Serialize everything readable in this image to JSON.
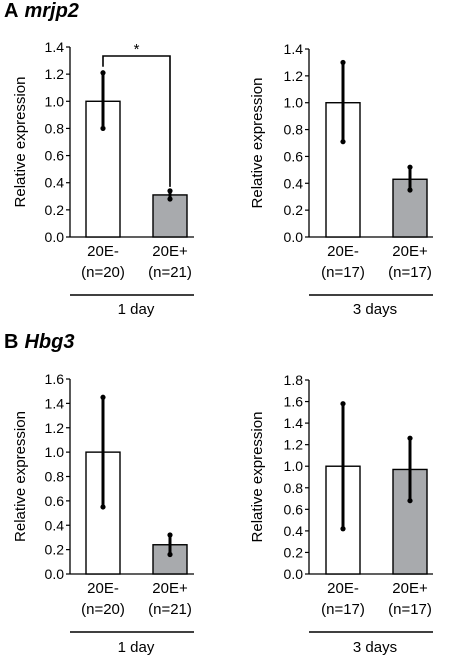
{
  "panels": [
    {
      "letter": "A",
      "gene": "mrjp2"
    },
    {
      "letter": "B",
      "gene": "Hbg3"
    }
  ],
  "colors": {
    "control_bar": "#ffffff",
    "treated_bar": "#a8aaad",
    "ink": "#000000"
  },
  "chart_data": [
    {
      "type": "bar",
      "panel": "A",
      "ylabel": "Relative expression",
      "ylim": [
        0,
        1.4
      ],
      "yticks": [
        "0.0",
        "0.2",
        "0.4",
        "0.6",
        "0.8",
        "1.0",
        "1.2",
        "1.4"
      ],
      "categories": [
        "20E-",
        "20E+"
      ],
      "n_labels": [
        "(n=20)",
        "(n=21)"
      ],
      "group_label": "1 day",
      "values": [
        1.0,
        0.31
      ],
      "error_low": [
        0.8,
        0.28
      ],
      "error_high": [
        1.21,
        0.34
      ],
      "significance": "*"
    },
    {
      "type": "bar",
      "panel": "A",
      "ylabel": "Relative expression",
      "ylim": [
        0,
        1.4
      ],
      "yticks": [
        "0.0",
        "0.2",
        "0.4",
        "0.6",
        "0.8",
        "1.0",
        "1.2",
        "1.4"
      ],
      "categories": [
        "20E-",
        "20E+"
      ],
      "n_labels": [
        "(n=17)",
        "(n=17)"
      ],
      "group_label": "3 days",
      "values": [
        1.0,
        0.43
      ],
      "error_low": [
        0.71,
        0.35
      ],
      "error_high": [
        1.3,
        0.52
      ]
    },
    {
      "type": "bar",
      "panel": "B",
      "ylabel": "Relative expression",
      "ylim": [
        0,
        1.6
      ],
      "yticks": [
        "0.0",
        "0.2",
        "0.4",
        "0.6",
        "0.8",
        "1.0",
        "1.2",
        "1.4",
        "1.6"
      ],
      "categories": [
        "20E-",
        "20E+"
      ],
      "n_labels": [
        "(n=20)",
        "(n=21)"
      ],
      "group_label": "1 day",
      "values": [
        1.0,
        0.24
      ],
      "error_low": [
        0.55,
        0.16
      ],
      "error_high": [
        1.45,
        0.32
      ]
    },
    {
      "type": "bar",
      "panel": "B",
      "ylabel": "Relative expression",
      "ylim": [
        0,
        1.8
      ],
      "yticks": [
        "0.0",
        "0.2",
        "0.4",
        "0.6",
        "0.8",
        "1.0",
        "1.2",
        "1.4",
        "1.6",
        "1.8"
      ],
      "categories": [
        "20E-",
        "20E+"
      ],
      "n_labels": [
        "(n=17)",
        "(n=17)"
      ],
      "group_label": "3 days",
      "values": [
        1.0,
        0.97
      ],
      "error_low": [
        0.42,
        0.68
      ],
      "error_high": [
        1.58,
        1.26
      ]
    }
  ]
}
